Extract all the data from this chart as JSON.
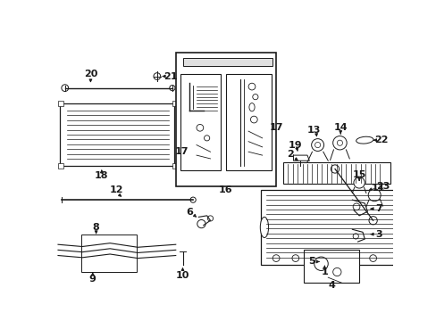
{
  "bg_color": "#ffffff",
  "lc": "#1a1a1a",
  "figsize": [
    4.89,
    3.6
  ],
  "dpi": 100,
  "xlim": [
    0,
    489
  ],
  "ylim": [
    0,
    360
  ]
}
